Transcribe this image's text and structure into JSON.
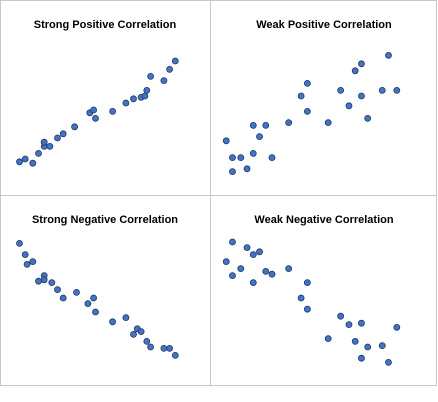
{
  "chart_data": [
    {
      "type": "scatter",
      "title": "Strong Positive Correlation",
      "color": "#4472c4",
      "xlim": [
        0,
        100
      ],
      "ylim": [
        0,
        100
      ],
      "x": [
        5,
        8,
        12,
        15,
        18,
        18,
        21,
        25,
        28,
        34,
        42,
        44,
        45,
        54,
        61,
        65,
        69,
        72,
        71,
        74,
        81,
        84,
        87
      ],
      "values": [
        13,
        15,
        12,
        19,
        24,
        27,
        24,
        30,
        33,
        38,
        48,
        50,
        44,
        49,
        55,
        58,
        59,
        64,
        60,
        74,
        71,
        79,
        85
      ]
    },
    {
      "type": "scatter",
      "title": "Weak Positive Correlation",
      "color": "#4472c4",
      "xlim": [
        0,
        100
      ],
      "ylim": [
        0,
        100
      ],
      "x": [
        3,
        6,
        6,
        10,
        13,
        16,
        16,
        19,
        22,
        25,
        33,
        39,
        42,
        42,
        52,
        58,
        62,
        65,
        68,
        68,
        71,
        78,
        81,
        85
      ],
      "values": [
        28,
        6,
        16,
        16,
        8,
        19,
        39,
        31,
        39,
        16,
        41,
        60,
        69,
        49,
        41,
        64,
        53,
        78,
        83,
        60,
        44,
        64,
        89,
        64
      ]
    },
    {
      "type": "scatter",
      "title": "Strong Negative Correlation",
      "color": "#4472c4",
      "xlim": [
        0,
        100
      ],
      "ylim": [
        0,
        100
      ],
      "x": [
        5,
        8,
        9,
        12,
        15,
        18,
        18,
        22,
        25,
        28,
        35,
        41,
        44,
        45,
        54,
        61,
        65,
        67,
        69,
        72,
        74,
        81,
        84,
        87
      ],
      "values": [
        94,
        86,
        79,
        81,
        67,
        71,
        68,
        66,
        61,
        55,
        59,
        51,
        55,
        45,
        38,
        41,
        29,
        33,
        31,
        24,
        20,
        19,
        19,
        14
      ]
    },
    {
      "type": "scatter",
      "title": "Weak Negative Correlation",
      "color": "#4472c4",
      "xlim": [
        0,
        100
      ],
      "ylim": [
        0,
        100
      ],
      "x": [
        3,
        6,
        6,
        10,
        13,
        16,
        16,
        19,
        22,
        25,
        33,
        39,
        42,
        42,
        52,
        58,
        62,
        65,
        68,
        68,
        71,
        78,
        81,
        85
      ],
      "values": [
        81,
        95,
        71,
        76,
        91,
        66,
        86,
        88,
        74,
        72,
        76,
        55,
        66,
        47,
        26,
        42,
        36,
        24,
        37,
        12,
        20,
        21,
        9,
        34
      ]
    }
  ]
}
